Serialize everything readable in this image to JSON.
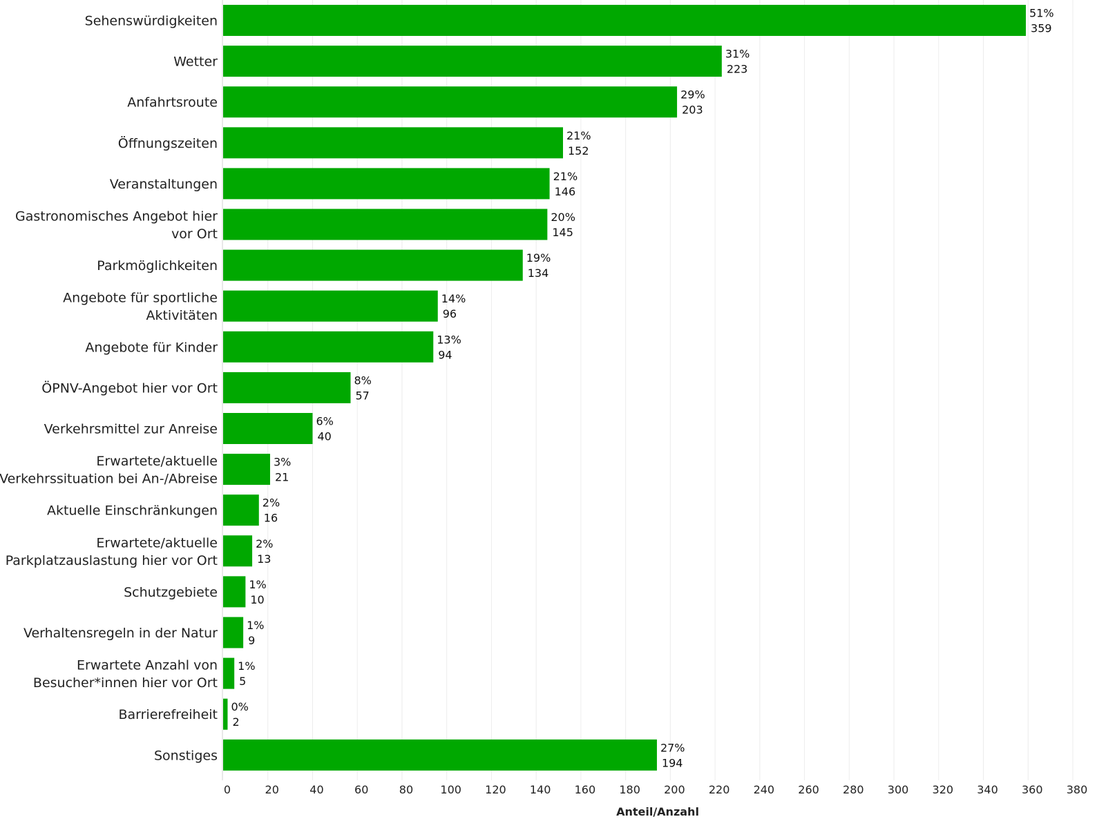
{
  "chart_data": {
    "type": "bar",
    "orientation": "horizontal",
    "categories": [
      [
        "Sehenswürdigkeiten"
      ],
      [
        "Wetter"
      ],
      [
        "Anfahrtsroute"
      ],
      [
        "Öffnungszeiten"
      ],
      [
        "Veranstaltungen"
      ],
      [
        "Gastronomisches Angebot hier",
        "vor Ort"
      ],
      [
        "Parkmöglichkeiten"
      ],
      [
        "Angebote für sportliche",
        "Aktivitäten"
      ],
      [
        "Angebote für Kinder"
      ],
      [
        "ÖPNV-Angebot hier vor Ort"
      ],
      [
        "Verkehrsmittel zur Anreise"
      ],
      [
        "Erwartete/aktuelle",
        "Verkehrssituation bei An-/Abreise"
      ],
      [
        "Aktuelle Einschränkungen"
      ],
      [
        "Erwartete/aktuelle",
        "Parkplatzauslastung hier vor Ort"
      ],
      [
        "Schutzgebiete"
      ],
      [
        "Verhaltensregeln in der Natur"
      ],
      [
        "Erwartete Anzahl von",
        "Besucher*innen hier vor Ort"
      ],
      [
        "Barrierefreiheit"
      ],
      [
        "Sonstiges"
      ]
    ],
    "values": [
      359,
      223,
      203,
      152,
      146,
      145,
      134,
      96,
      94,
      57,
      40,
      21,
      16,
      13,
      10,
      9,
      5,
      2,
      194
    ],
    "percent_labels": [
      "51%",
      "31%",
      "29%",
      "21%",
      "21%",
      "20%",
      "19%",
      "14%",
      "13%",
      "8%",
      "6%",
      "3%",
      "2%",
      "2%",
      "1%",
      "1%",
      "1%",
      "0%",
      "27%"
    ],
    "xlabel": "Anteil/Anzahl",
    "xlim": [
      0,
      380
    ],
    "xticks": [
      0,
      20,
      40,
      60,
      80,
      100,
      120,
      140,
      160,
      180,
      200,
      220,
      240,
      260,
      280,
      300,
      320,
      340,
      360,
      380
    ],
    "grid": "vertical",
    "bar_color": "#00a800"
  }
}
